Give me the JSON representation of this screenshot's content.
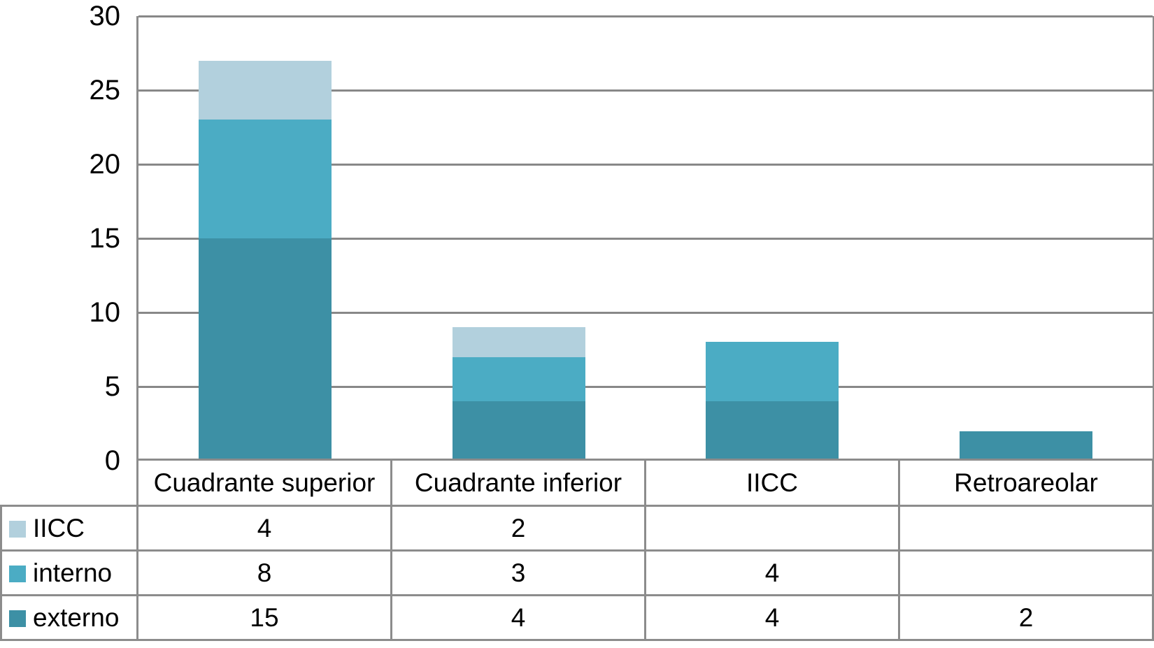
{
  "chart_data": {
    "type": "bar",
    "stacked": true,
    "title": "",
    "xlabel": "",
    "ylabel": "",
    "categories": [
      "Cuadrante superior",
      "Cuadrante inferior",
      "IICC",
      "Retroareolar"
    ],
    "series": [
      {
        "name": "IICC",
        "color": "#b2d0dd",
        "values": [
          4,
          2,
          null,
          null
        ]
      },
      {
        "name": "interno",
        "color": "#4bacc4",
        "values": [
          8,
          3,
          4,
          null
        ]
      },
      {
        "name": "externo",
        "color": "#3d90a5",
        "values": [
          15,
          4,
          4,
          2
        ]
      }
    ],
    "stack_order_bottom_to_top": [
      "externo",
      "interno",
      "IICC"
    ],
    "table_display": [
      [
        "4",
        "2",
        "",
        ""
      ],
      [
        "8",
        "3",
        "4",
        ""
      ],
      [
        "15",
        "4",
        "4",
        "2"
      ]
    ],
    "yticks": [
      0,
      5,
      10,
      15,
      20,
      25,
      30
    ],
    "ylim": [
      0,
      30
    ],
    "grid": true,
    "legend_position": "table-rows-left",
    "styles": {
      "grid_color": "#888888",
      "border_color": "#8c8c8c",
      "text_color": "#000000",
      "background": "#ffffff"
    }
  }
}
